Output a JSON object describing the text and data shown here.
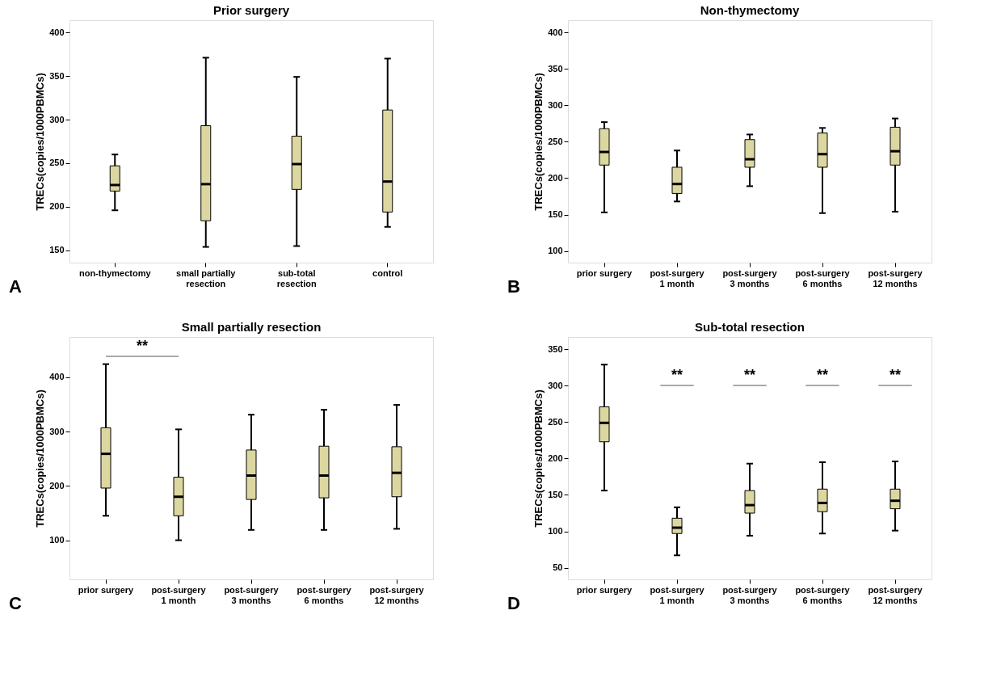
{
  "chart_data": [
    {
      "type": "box",
      "title": "Prior surgery",
      "ylabel": "TRECs(copies/1000PBMCs)",
      "categories": [
        "non-thymectomy",
        "small partially\nresection",
        "sub-total\nresection",
        "control"
      ],
      "series": [
        {
          "color": "#dcd7a0",
          "boxes": [
            {
              "low": 196,
              "q1": 218,
              "median": 225,
              "q3": 247,
              "high": 260
            },
            {
              "low": 154,
              "q1": 184,
              "median": 226,
              "q3": 293,
              "high": 371
            },
            {
              "low": 155,
              "q1": 220,
              "median": 249,
              "q3": 281,
              "high": 349
            },
            {
              "low": 177,
              "q1": 194,
              "median": 229,
              "q3": 311,
              "high": 370
            }
          ]
        }
      ],
      "ylim": [
        136,
        414
      ],
      "yticks": [
        150,
        200,
        250,
        300,
        350,
        400
      ],
      "grid": false,
      "annotations": [
        "A"
      ]
    },
    {
      "type": "box",
      "title": "Non-thymectomy",
      "ylabel": "TRECs(copies/1000PBMCs)",
      "categories": [
        "prior surgery",
        "post-surgery\n1 month",
        "post-surgery\n3 months",
        "post-surgery\n6 months",
        "post-surgery\n12 months"
      ],
      "series": [
        {
          "color": "#dcd7a0",
          "boxes": [
            {
              "low": 153,
              "q1": 218,
              "median": 236,
              "q3": 268,
              "high": 277
            },
            {
              "low": 168,
              "q1": 179,
              "median": 192,
              "q3": 215,
              "high": 238
            },
            {
              "low": 189,
              "q1": 215,
              "median": 226,
              "q3": 253,
              "high": 260
            },
            {
              "low": 152,
              "q1": 215,
              "median": 233,
              "q3": 262,
              "high": 269
            },
            {
              "low": 154,
              "q1": 218,
              "median": 237,
              "q3": 270,
              "high": 282
            }
          ]
        }
      ],
      "ylim": [
        84,
        417
      ],
      "yticks": [
        100,
        150,
        200,
        250,
        300,
        350,
        400
      ],
      "grid": false,
      "annotations": [
        "B"
      ]
    },
    {
      "type": "box",
      "title": "Small partially resection",
      "ylabel": "TRECs(copies/1000PBMCs)",
      "categories": [
        "prior surgery",
        "post-surgery\n1 month",
        "post-surgery\n3 months",
        "post-surgery\n6 months",
        "post-surgery\n12 months"
      ],
      "series": [
        {
          "color": "#dcd7a0",
          "boxes": [
            {
              "low": 145,
              "q1": 196,
              "median": 259,
              "q3": 307,
              "high": 424
            },
            {
              "low": 100,
              "q1": 145,
              "median": 180,
              "q3": 216,
              "high": 304
            },
            {
              "low": 119,
              "q1": 175,
              "median": 219,
              "q3": 266,
              "high": 331
            },
            {
              "low": 119,
              "q1": 178,
              "median": 219,
              "q3": 273,
              "high": 340
            },
            {
              "low": 121,
              "q1": 180,
              "median": 224,
              "q3": 272,
              "high": 349
            }
          ]
        }
      ],
      "ylim": [
        28,
        474
      ],
      "yticks": [
        100,
        200,
        300,
        400
      ],
      "grid": false,
      "annotations": [
        "**",
        "C"
      ]
    },
    {
      "type": "box",
      "title": "Sub-total resection",
      "ylabel": "TRECs(copies/1000PBMCs)",
      "categories": [
        "prior surgery",
        "post-surgery\n1 month",
        "post-surgery\n3 months",
        "post-surgery\n6 months",
        "post-surgery\n12 months"
      ],
      "series": [
        {
          "color": "#dcd7a0",
          "boxes": [
            {
              "low": 156,
              "q1": 223,
              "median": 249,
              "q3": 271,
              "high": 329
            },
            {
              "low": 67,
              "q1": 97,
              "median": 105,
              "q3": 118,
              "high": 133
            },
            {
              "low": 94,
              "q1": 125,
              "median": 136,
              "q3": 156,
              "high": 193
            },
            {
              "low": 97,
              "q1": 127,
              "median": 139,
              "q3": 158,
              "high": 195
            },
            {
              "low": 101,
              "q1": 131,
              "median": 142,
              "q3": 158,
              "high": 196
            }
          ]
        }
      ],
      "ylim": [
        34,
        367
      ],
      "yticks": [
        50,
        100,
        150,
        200,
        250,
        300,
        350
      ],
      "grid": false,
      "annotations": [
        "**",
        "**",
        "**",
        "**",
        "D"
      ]
    }
  ]
}
